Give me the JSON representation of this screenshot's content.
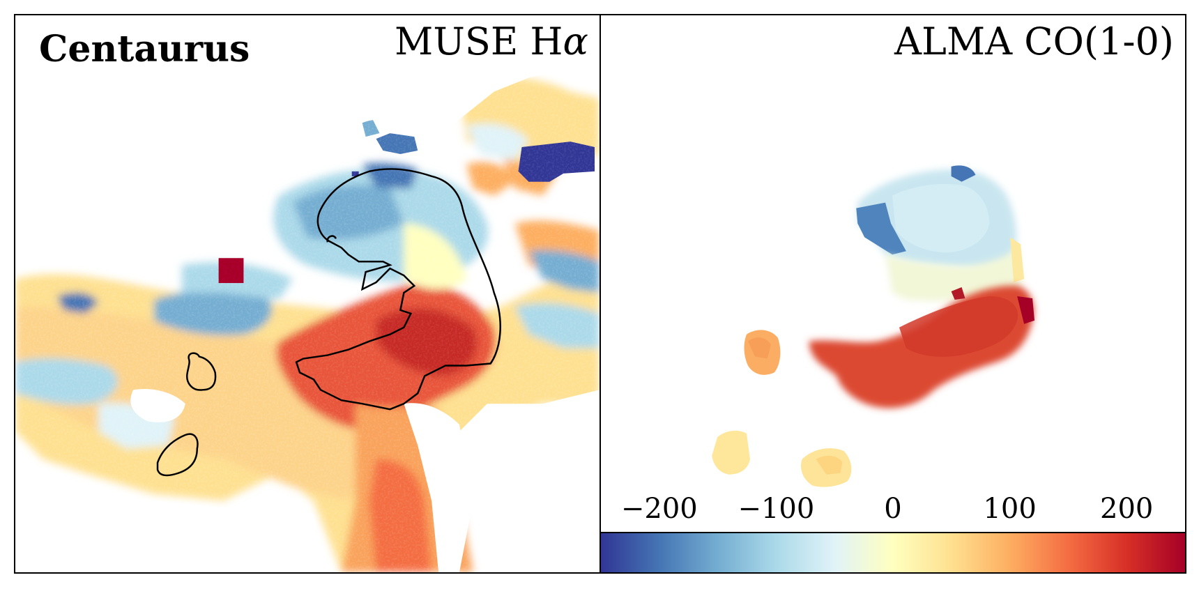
{
  "left_panel": {
    "cluster_name": "Centaurus",
    "title_prefix": "MUSE H",
    "title_symbol": "α"
  },
  "right_panel": {
    "title": "ALMA CO(1-0)"
  },
  "colorbar": {
    "ticks": [
      "−200",
      "−100",
      "0",
      "100",
      "200"
    ],
    "tick_values": [
      -200,
      -100,
      0,
      100,
      200
    ],
    "range": [
      -250,
      250
    ],
    "colormap": [
      "#313695",
      "#4575b4",
      "#74add1",
      "#abd9e9",
      "#e0f3f8",
      "#ffffbf",
      "#fee090",
      "#fdae61",
      "#f46d43",
      "#d73027",
      "#a50026"
    ]
  }
}
